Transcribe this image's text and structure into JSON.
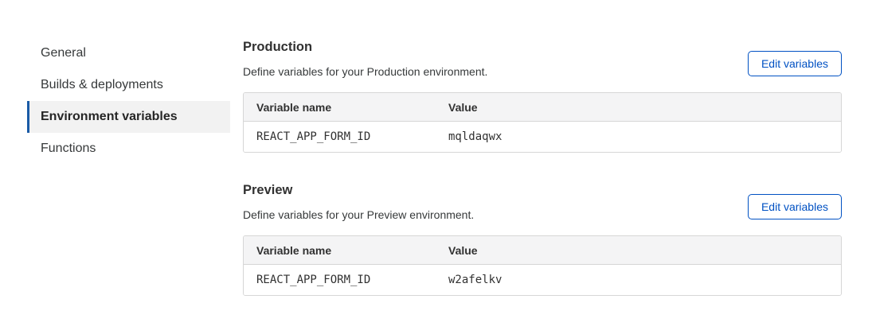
{
  "sidebar": {
    "items": [
      {
        "label": "General",
        "active": false
      },
      {
        "label": "Builds & deployments",
        "active": false
      },
      {
        "label": "Environment variables",
        "active": true
      },
      {
        "label": "Functions",
        "active": false
      }
    ]
  },
  "sections": [
    {
      "title": "Production",
      "description": "Define variables for your Production environment.",
      "button_label": "Edit variables",
      "table": {
        "columns": [
          "Variable name",
          "Value"
        ],
        "rows": [
          {
            "name": "REACT_APP_FORM_ID",
            "value": "mqldaqwx"
          }
        ]
      }
    },
    {
      "title": "Preview",
      "description": "Define variables for your Preview environment.",
      "button_label": "Edit variables",
      "table": {
        "columns": [
          "Variable name",
          "Value"
        ],
        "rows": [
          {
            "name": "REACT_APP_FORM_ID",
            "value": "w2afelkv"
          }
        ]
      }
    }
  ],
  "colors": {
    "accent_blue": "#0051c3",
    "active_marker": "#1a5ba6",
    "active_bg": "#f2f2f2",
    "table_border": "#d6d6d6",
    "table_header_bg": "#f4f4f5",
    "text_primary": "#313131",
    "text_secondary": "#36393a"
  }
}
